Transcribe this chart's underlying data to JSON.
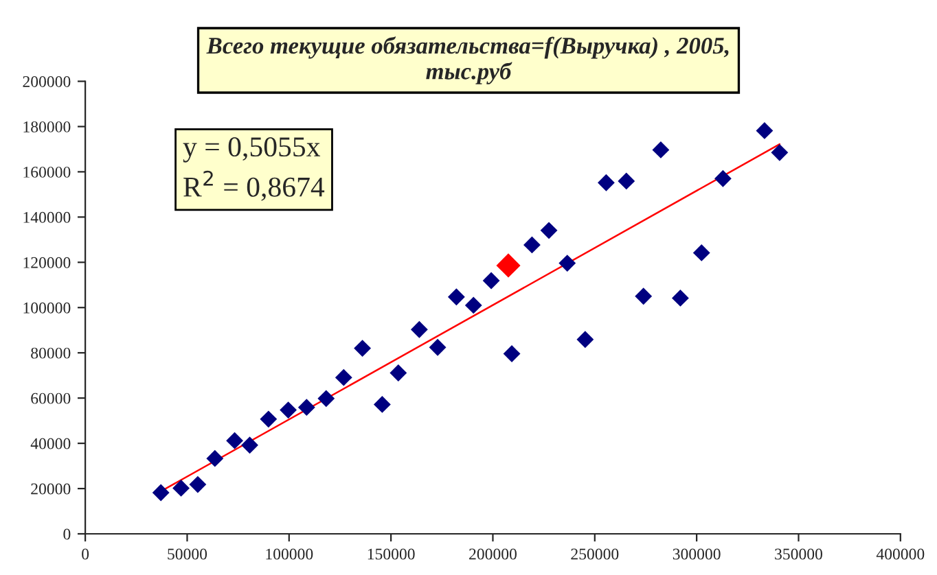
{
  "chart_data": {
    "type": "scatter",
    "title": "Всего текущие обязательства=f(Выручка) , 2005,\nтыс.руб",
    "annotations": [
      "y = 0,5055x",
      "R$^{2}$ = 0,8674"
    ],
    "series": [
      {
        "color": "#000080",
        "marker": "diamond",
        "x": [
          37100,
          47000,
          55200,
          63600,
          73300,
          80700,
          89900,
          99600,
          108600,
          118200,
          126800,
          136000,
          145700,
          153600,
          163900,
          172900,
          182100,
          190500,
          199200,
          209300,
          245300,
          273900,
          292000,
          219200,
          227500,
          236500,
          255600,
          265500,
          282400,
          302400,
          312900,
          333300,
          340700
        ],
        "values": [
          18200,
          20200,
          21800,
          33300,
          41200,
          39200,
          50700,
          54700,
          55900,
          59800,
          69100,
          82000,
          57200,
          71100,
          90300,
          82400,
          104700,
          101000,
          111900,
          79600,
          85900,
          105000,
          104200,
          127700,
          134100,
          119600,
          155200,
          155900,
          169700,
          124200,
          157000,
          178200,
          168500
        ]
      },
      {
        "type": "scatter",
        "color": "#ff0000",
        "marker": "diamond",
        "x": [
          207600
        ],
        "values": [
          118600
        ]
      },
      {
        "type": "line",
        "color": "#ff0000",
        "marker": "none",
        "line_style": "solid",
        "x": [
          37100,
          340700
        ],
        "values": [
          18800,
          172200
        ]
      }
    ],
    "xlim": [
      0,
      400000
    ],
    "xticks": [
      0,
      50000,
      100000,
      150000,
      200000,
      250000,
      300000,
      350000,
      400000
    ],
    "ylim": [
      0,
      200000
    ],
    "yticks": [
      0,
      20000,
      40000,
      60000,
      80000,
      100000,
      120000,
      140000,
      160000,
      180000,
      200000
    ],
    "grid": false,
    "legend": false
  }
}
